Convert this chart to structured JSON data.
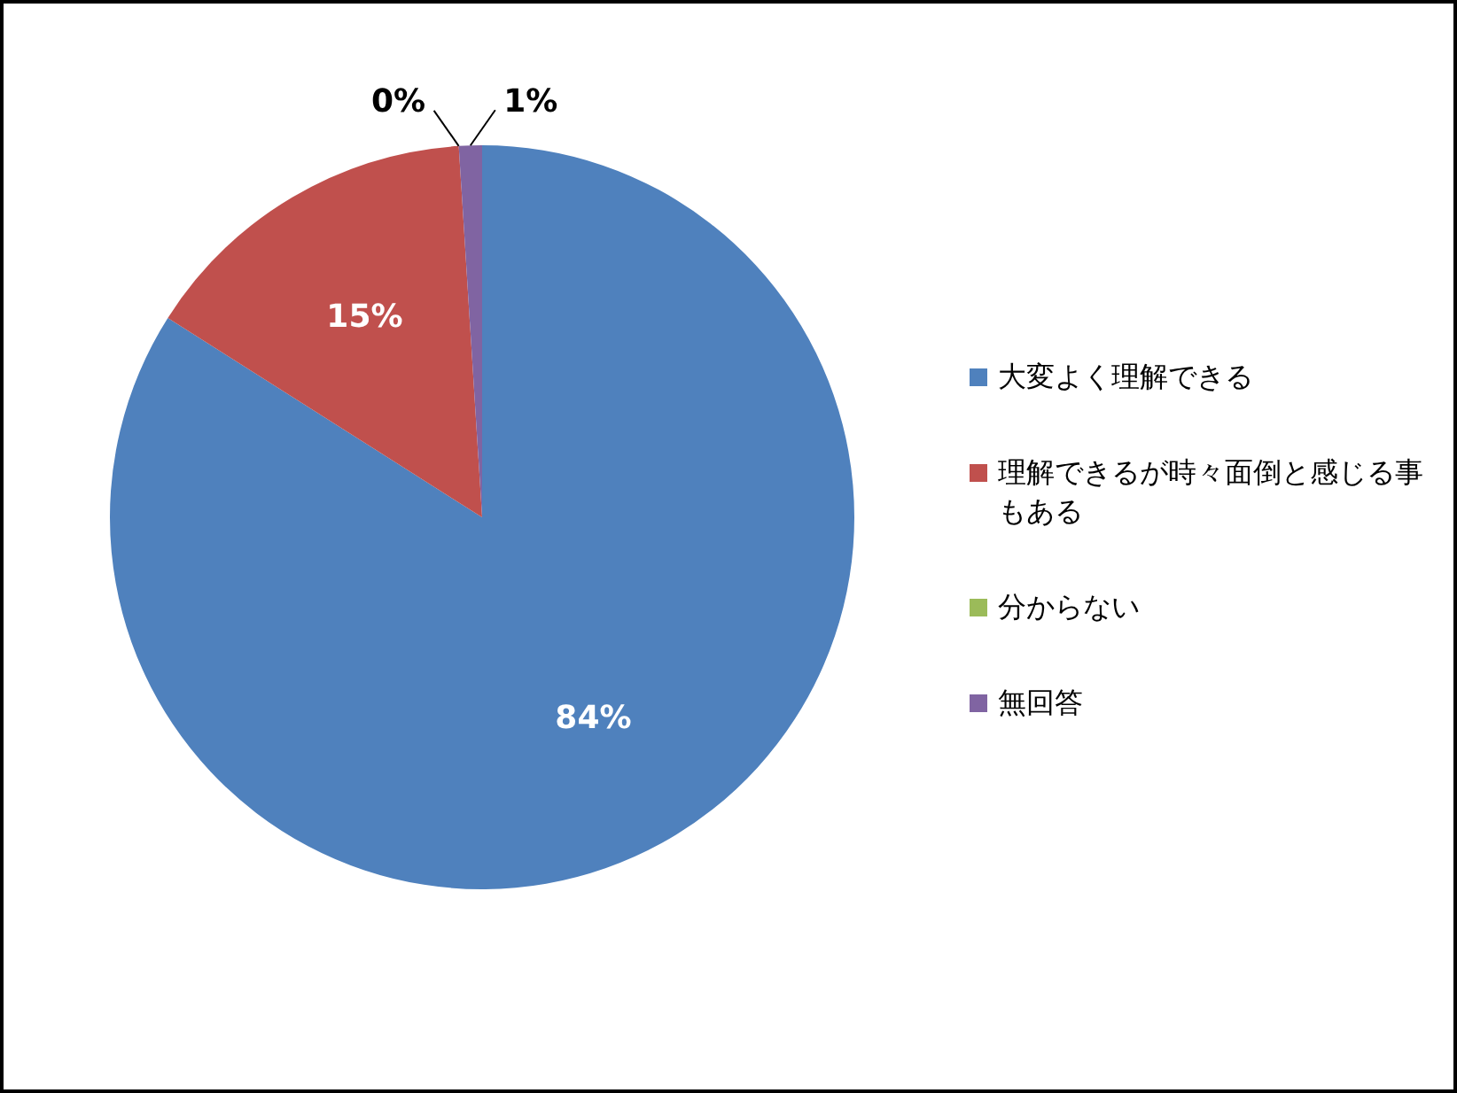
{
  "chart_data": {
    "type": "pie",
    "categories": [
      "大変よく理解できる",
      "理解できるが時々面倒と感じる事もある",
      "分からない",
      "無回答"
    ],
    "values": [
      84,
      15,
      0,
      1
    ],
    "colors": [
      "#4f81bd",
      "#c0504d",
      "#9bbb59",
      "#8064a2"
    ],
    "value_labels": [
      "84%",
      "15%",
      "0%",
      "1%"
    ],
    "legend": "right"
  }
}
